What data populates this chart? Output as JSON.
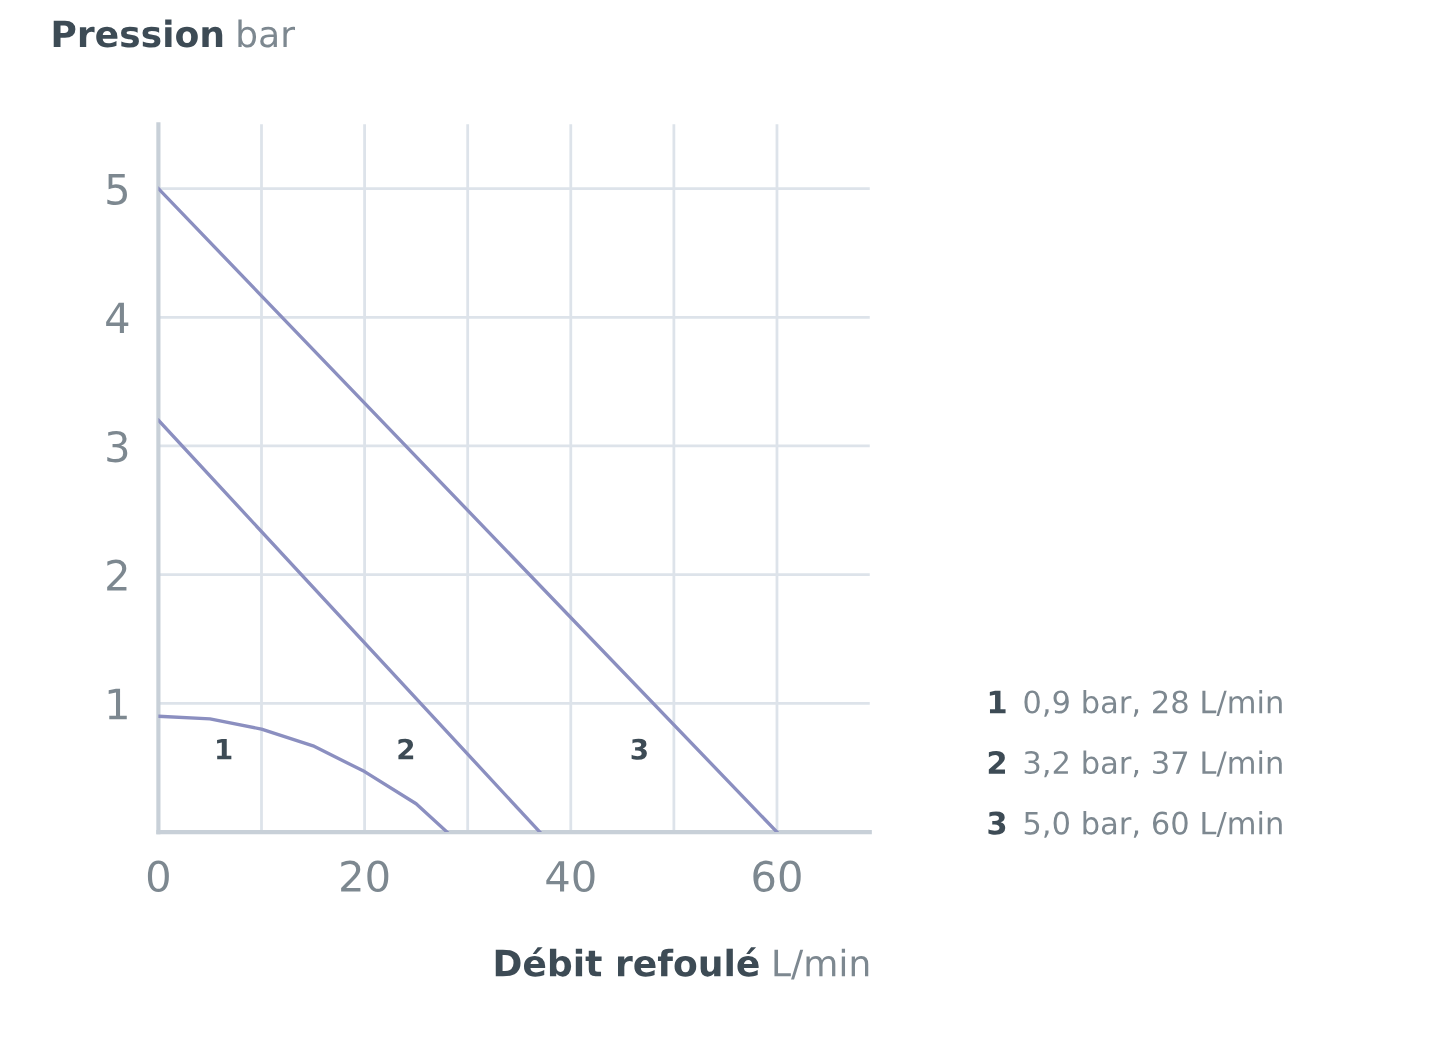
{
  "chart_data": {
    "type": "line",
    "ylabel": "Pression bar",
    "xlabel": "Débit refoulé L/min",
    "xlim": [
      0,
      69
    ],
    "ylim": [
      0,
      5.5
    ],
    "xticks": [
      0,
      {
        "value": 10,
        "label": null
      },
      20,
      {
        "value": 30,
        "label": null
      },
      40,
      {
        "value": 50,
        "label": null
      },
      60
    ],
    "yticks": [
      1,
      2,
      3,
      4,
      5
    ],
    "grid": true,
    "marker": "none",
    "line_style": "solid",
    "series": [
      {
        "color": "#8b8fc0",
        "x": [
          0,
          5,
          10,
          15,
          20,
          25,
          28
        ],
        "values": [
          0.9,
          0.88,
          0.8,
          0.67,
          0.47,
          0.22,
          0
        ]
      },
      {
        "color": "#8b8fc0",
        "x": [
          0,
          37
        ],
        "values": [
          3.2,
          0
        ]
      },
      {
        "color": "#8b8fc0",
        "x": [
          0,
          60
        ],
        "values": [
          5.0,
          0
        ]
      }
    ],
    "annotations": [
      "1",
      "2",
      "3",
      "1",
      "0,9 bar, 28 L/min",
      "2",
      "3,2 bar, 37 L/min",
      "3",
      "5,0 bar, 60 L/min"
    ]
  }
}
